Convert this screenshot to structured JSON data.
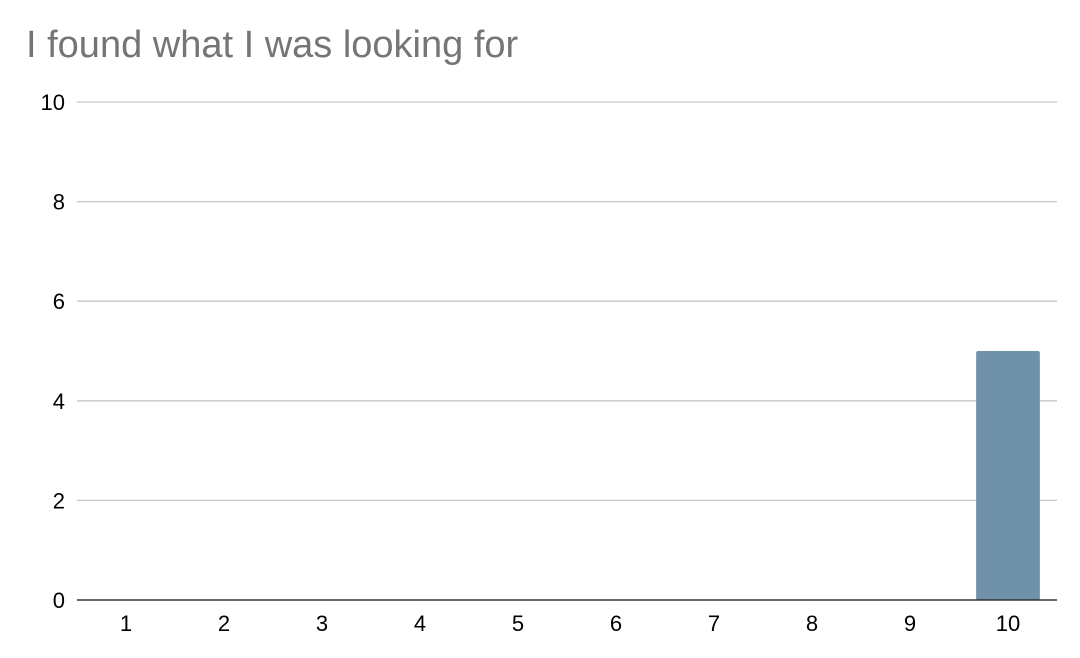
{
  "chart_data": {
    "type": "bar",
    "title": "I found what I was looking for",
    "xlabel": "",
    "ylabel": "",
    "categories": [
      "1",
      "2",
      "3",
      "4",
      "5",
      "6",
      "7",
      "8",
      "9",
      "10"
    ],
    "values": [
      0,
      0,
      0,
      0,
      0,
      0,
      0,
      0,
      0,
      5
    ],
    "ylim": [
      0,
      10
    ],
    "yticks": [
      0,
      2,
      4,
      6,
      8,
      10
    ],
    "grid": true,
    "legend": "none",
    "colors": {
      "bar": "#6f92aa",
      "grid": "#c6c6c6",
      "axis": "#333333",
      "title": "#757575"
    }
  }
}
